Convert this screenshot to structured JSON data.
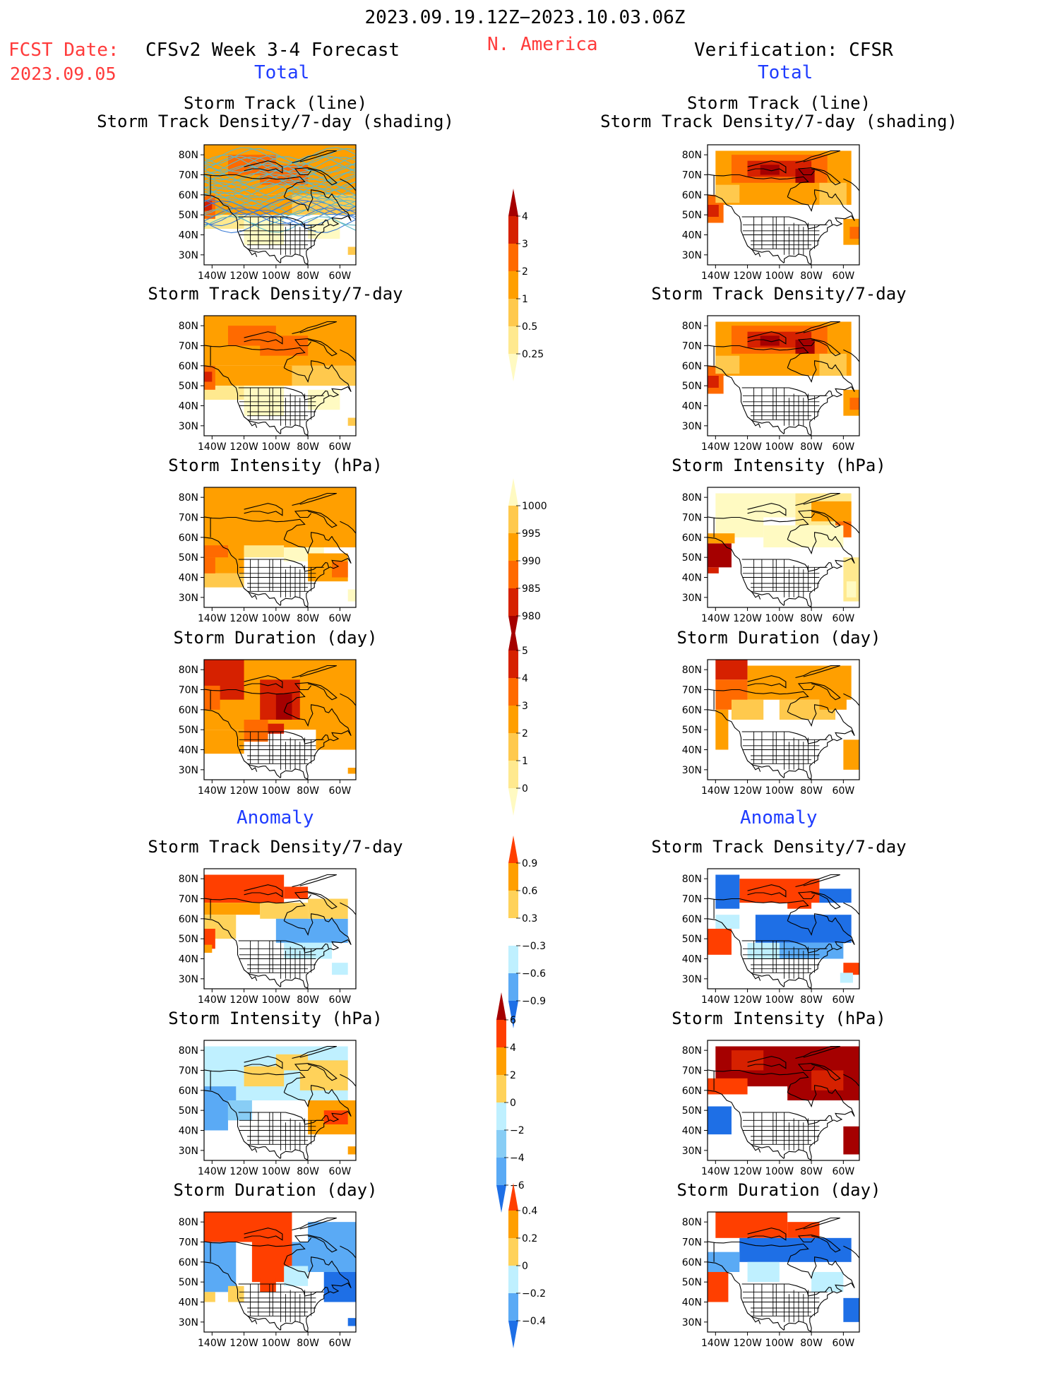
{
  "header": {
    "period": "2023.09.19.12Z−2023.10.03.06Z",
    "region": "N. America",
    "fcst_label": "FCST Date:",
    "fcst_date": "2023.09.05",
    "model_title": "CFSv2 Week 3-4 Forecast",
    "verif_title": "Verification: CFSR",
    "total_left": "Total",
    "total_right": "Total",
    "anom_left": "Anomaly",
    "anom_right": "Anomaly"
  },
  "panel_titles": {
    "p1a": "Storm Track (line)",
    "p1b": "Storm Track Density/7-day (shading)",
    "p2": "Storm Track Density/7-day",
    "p3": "Storm Intensity (hPa)",
    "p4": "Storm Duration (day)",
    "p5": "Storm Track Density/7-day",
    "p6": "Storm Intensity (hPa)",
    "p7": "Storm Duration (day)"
  },
  "axes": {
    "lon_labels": [
      "140W",
      "120W",
      "100W",
      "80W",
      "60W"
    ],
    "lat_labels": [
      "80N",
      "70N",
      "60N",
      "50N",
      "40N",
      "30N"
    ]
  },
  "colorbars": {
    "density_total": {
      "labels": [
        "4",
        "3",
        "2",
        "1",
        "0.5",
        "0.25"
      ],
      "colors": [
        "#a50000",
        "#d62100",
        "#ff6a00",
        "#ff9f00",
        "#ffc94d",
        "#ffe98f",
        "#fffac2"
      ]
    },
    "intensity_total": {
      "labels": [
        "1000",
        "995",
        "990",
        "985",
        "980"
      ],
      "colors": [
        "#fffac2",
        "#ffc94d",
        "#ff9f00",
        "#ff6a00",
        "#d62100",
        "#a50000"
      ]
    },
    "duration_total": {
      "labels": [
        "5",
        "4",
        "3",
        "2",
        "1",
        "0"
      ],
      "colors": [
        "#a50000",
        "#d62100",
        "#ff6a00",
        "#ff9f00",
        "#ffc94d",
        "#ffe98f",
        "#fffac2"
      ]
    },
    "density_anom": {
      "labels": [
        "0.9",
        "0.6",
        "0.3",
        "−0.3",
        "−0.6",
        "−0.9"
      ],
      "colors": [
        "#ff3f00",
        "#ff9f00",
        "#ffd25a",
        "#ffffff",
        "#bff0ff",
        "#5aaaf5",
        "#1e6fe6"
      ]
    },
    "intensity_anom": {
      "labels": [
        "6",
        "4",
        "2",
        "0",
        "−2",
        "−4",
        "−6"
      ],
      "colors": [
        "#a50000",
        "#ff3f00",
        "#ff9f00",
        "#ffd25a",
        "#bff0ff",
        "#88cdf5",
        "#5aaaf5",
        "#1e6fe6"
      ]
    },
    "duration_anom": {
      "labels": [
        "0.4",
        "0.2",
        "0",
        "−0.2",
        "−0.4"
      ],
      "colors": [
        "#ff3f00",
        "#ff9f00",
        "#ffd25a",
        "#bff0ff",
        "#5aaaf5",
        "#1e6fe6"
      ]
    }
  }
}
